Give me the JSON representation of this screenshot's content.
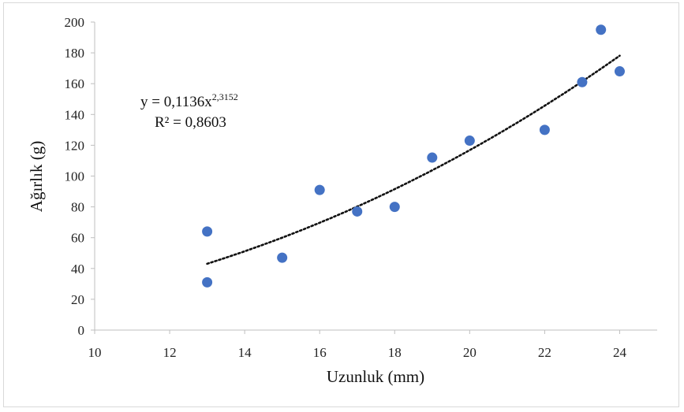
{
  "chart_data": {
    "type": "scatter",
    "title": "",
    "xlabel": "Uzunluk (mm)",
    "ylabel": "Ağırlık (g)",
    "xlim": [
      10,
      25
    ],
    "ylim": [
      0,
      200
    ],
    "x_ticks": [
      "10",
      "12",
      "14",
      "16",
      "18",
      "20",
      "22",
      "24"
    ],
    "y_ticks": [
      "0",
      "20",
      "40",
      "60",
      "80",
      "100",
      "120",
      "140",
      "160",
      "180",
      "200"
    ],
    "grid": false,
    "marker_color": "#4472c4",
    "trendline_color": "#111111",
    "series": [
      {
        "points": [
          {
            "x": 13,
            "y": 64
          },
          {
            "x": 13,
            "y": 31
          },
          {
            "x": 15,
            "y": 47
          },
          {
            "x": 16,
            "y": 91
          },
          {
            "x": 17,
            "y": 77
          },
          {
            "x": 18,
            "y": 80
          },
          {
            "x": 19,
            "y": 112
          },
          {
            "x": 20,
            "y": 123
          },
          {
            "x": 22,
            "y": 130
          },
          {
            "x": 23,
            "y": 161
          },
          {
            "x": 23.5,
            "y": 195
          },
          {
            "x": 24,
            "y": 168
          }
        ]
      }
    ],
    "trendline": {
      "type": "power",
      "a": 0.1136,
      "b": 2.3152,
      "x_range": [
        13,
        24
      ],
      "equation_prefix": "y = 0,1136x",
      "equation_exponent": "2,3152",
      "r2_text": "R² = 0,8603"
    }
  }
}
